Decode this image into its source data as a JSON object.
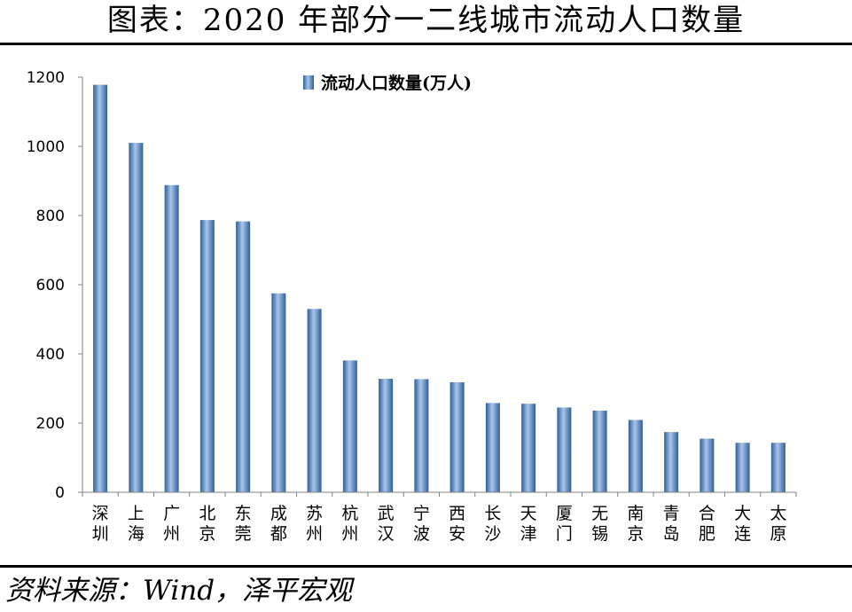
{
  "title": "图表：2020 年部分一二线城市流动人口数量",
  "source": "资料来源：Wind，泽平宏观",
  "colors": {
    "bar_light": "#a9c6e8",
    "bar_mid": "#5b8ec9",
    "bar_dark": "#2e5f9b",
    "axis": "#808080"
  },
  "chart_data": {
    "type": "bar",
    "categories": [
      "深圳",
      "上海",
      "广州",
      "北京",
      "东莞",
      "成都",
      "苏州",
      "杭州",
      "武汉",
      "宁波",
      "西安",
      "长沙",
      "天津",
      "厦门",
      "无锡",
      "南京",
      "青岛",
      "合肥",
      "大连",
      "太原"
    ],
    "series": [
      {
        "name": "流动人口数量(万人)",
        "values": [
          1178,
          1010,
          888,
          787,
          783,
          575,
          530,
          381,
          328,
          327,
          318,
          258,
          256,
          245,
          236,
          209,
          174,
          155,
          143,
          143
        ]
      }
    ],
    "ylim": [
      0,
      1200
    ],
    "yticks": [
      "0",
      "200",
      "400",
      "600",
      "800",
      "1000",
      "1200"
    ],
    "legend": "top-center",
    "grid": false
  }
}
